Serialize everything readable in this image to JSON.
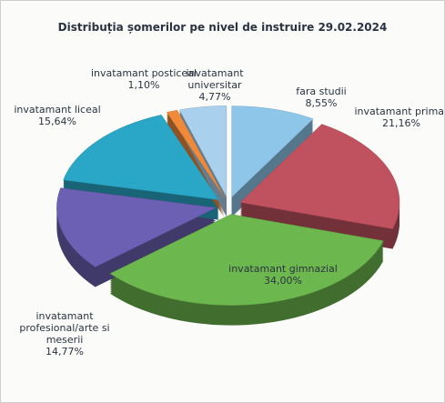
{
  "chart_data": {
    "type": "pie",
    "title": "Distribuția șomerilor pe nivel de instruire 29.02.2024",
    "categories": [
      "fara studii",
      "invatamant primar",
      "invatamant gimnazial",
      "invatamant profesional/arte si meserii",
      "invatamant liceal",
      "invatamant posticeal",
      "invatamant universitar"
    ],
    "values": [
      8.55,
      21.16,
      34.0,
      14.77,
      15.64,
      1.1,
      4.77
    ],
    "value_labels": [
      "8,55%",
      "21,16%",
      "34,00%",
      "14,77%",
      "15,64%",
      "1,10%",
      "4,77%"
    ],
    "colors": [
      "#8ec6ea",
      "#c0525f",
      "#6db84e",
      "#6b60b3",
      "#2aa7c6",
      "#ef8a3a",
      "#a9d0ec"
    ]
  }
}
